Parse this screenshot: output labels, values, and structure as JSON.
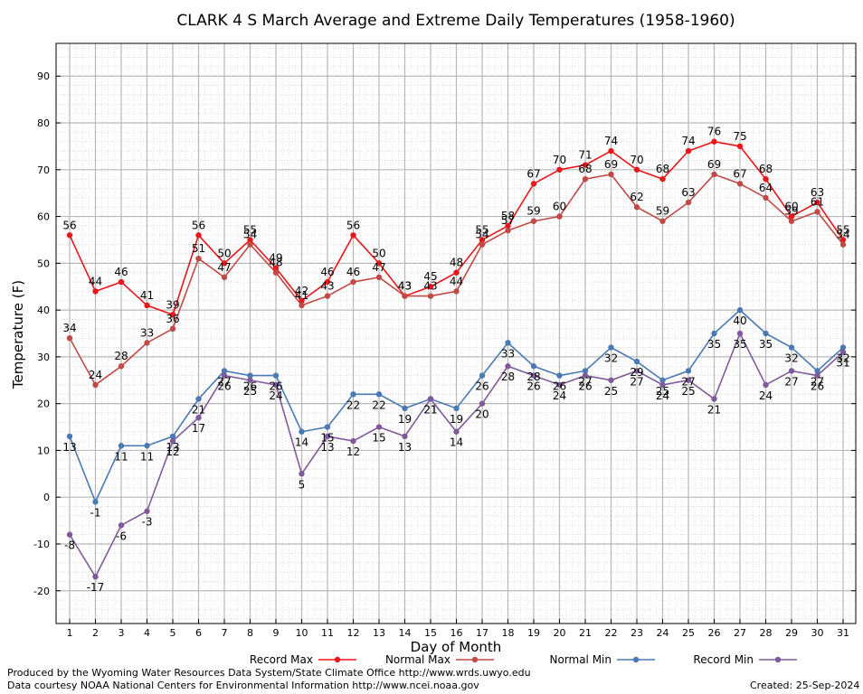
{
  "chart_data": {
    "type": "line",
    "title": "CLARK 4 S March Average and Extreme Daily Temperatures (1958-1960)",
    "xlabel": "Day of Month",
    "ylabel": "Temperature (F)",
    "x": [
      1,
      2,
      3,
      4,
      5,
      6,
      7,
      8,
      9,
      10,
      11,
      12,
      13,
      14,
      15,
      16,
      17,
      18,
      19,
      20,
      21,
      22,
      23,
      24,
      25,
      26,
      27,
      28,
      29,
      30,
      31
    ],
    "ylim": [
      -27,
      97
    ],
    "yticks": [
      -20,
      -10,
      0,
      10,
      20,
      30,
      40,
      50,
      60,
      70,
      80,
      90
    ],
    "grid": true,
    "legend_position": "bottom",
    "series": [
      {
        "name": "Record Max",
        "color": "#e8171b",
        "values": [
          56,
          44,
          46,
          41,
          39,
          56,
          50,
          55,
          49,
          42,
          46,
          56,
          50,
          43,
          45,
          48,
          55,
          58,
          67,
          70,
          71,
          74,
          70,
          68,
          74,
          76,
          75,
          68,
          60,
          63,
          55
        ]
      },
      {
        "name": "Normal Max",
        "color": "#c04a45",
        "values": [
          34,
          24,
          28,
          33,
          36,
          51,
          47,
          54,
          48,
          41,
          43,
          46,
          47,
          43,
          43,
          44,
          54,
          57,
          59,
          60,
          68,
          69,
          62,
          59,
          63,
          69,
          67,
          64,
          59,
          61,
          54
        ]
      },
      {
        "name": "Normal Min",
        "color": "#4a7ab3",
        "values": [
          13,
          -1,
          11,
          11,
          13,
          21,
          27,
          26,
          26,
          14,
          15,
          22,
          22,
          19,
          21,
          19,
          26,
          33,
          28,
          26,
          27,
          32,
          29,
          25,
          27,
          35,
          40,
          35,
          32,
          27,
          32
        ]
      },
      {
        "name": "Record Min",
        "color": "#7e5a9b",
        "values": [
          -8,
          -17,
          -6,
          -3,
          12,
          17,
          26,
          25,
          24,
          5,
          13,
          12,
          15,
          13,
          21,
          14,
          20,
          28,
          26,
          24,
          26,
          25,
          27,
          24,
          25,
          21,
          35,
          24,
          27,
          26,
          31
        ]
      }
    ]
  },
  "footer": {
    "producer": "Produced by the Wyoming Water Resources Data System/State Climate Office http://www.wrds.uwyo.edu",
    "source": "Data courtesy NOAA National Centers for Environmental Information http://www.ncei.noaa.gov",
    "created": "Created:  25-Sep-2024"
  }
}
